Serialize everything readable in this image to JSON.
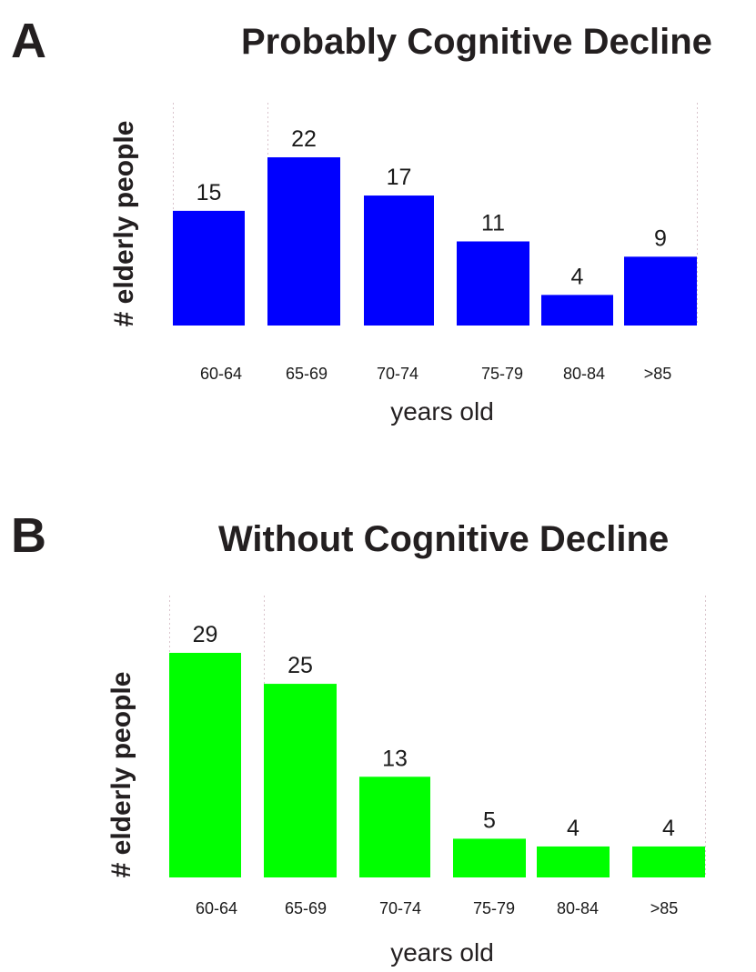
{
  "chart_data": [
    {
      "panel": "A",
      "type": "bar",
      "title": "Probably Cognitive Decline",
      "xlabel": "years old",
      "ylabel": "# elderly people",
      "categories": [
        "60-64",
        "65-69",
        "70-74",
        "75-79",
        "80-84",
        ">85"
      ],
      "values": [
        15,
        22,
        17,
        11,
        4,
        9
      ],
      "data_labels": [
        "15",
        "22",
        "17",
        "11",
        "4",
        "9"
      ],
      "ylim": [
        0,
        22
      ],
      "bar_color": "#0000ff",
      "gridlines": "dotted vertical separators",
      "legend": "none"
    },
    {
      "panel": "B",
      "type": "bar",
      "title": "Without Cognitive Decline",
      "xlabel": "years old",
      "ylabel": "# elderly people",
      "categories": [
        "60-64",
        "65-69",
        "70-74",
        "75-79",
        "80-84",
        ">85"
      ],
      "values": [
        29,
        25,
        13,
        5,
        4,
        4
      ],
      "data_labels": [
        "29",
        "25",
        "13",
        "5",
        "4",
        "4"
      ],
      "ylim": [
        0,
        29
      ],
      "bar_color": "#00ff00",
      "gridlines": "dotted vertical separators",
      "legend": "none"
    }
  ]
}
